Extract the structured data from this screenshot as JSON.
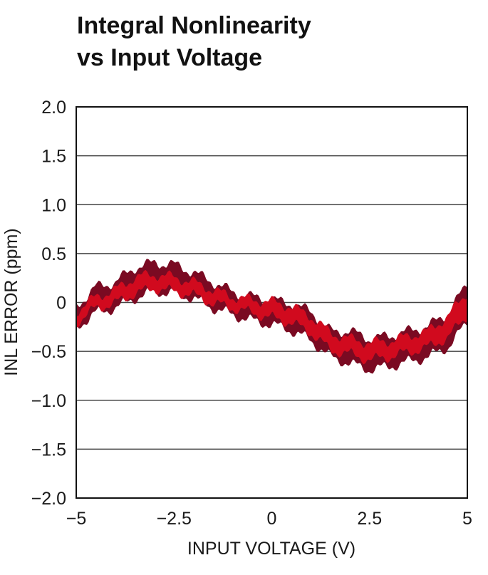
{
  "chart_data": {
    "type": "area",
    "title_lines": [
      "Integral Nonlinearity",
      "vs Input Voltage"
    ],
    "xlabel": "INPUT VOLTAGE (V)",
    "ylabel": "INL ERROR (ppm)",
    "xlim": [
      -5,
      5
    ],
    "ylim": [
      -2.0,
      2.0
    ],
    "x_ticks": [
      -5,
      -2.5,
      0,
      2.5,
      5
    ],
    "x_tick_labels": [
      "−5",
      "−2.5",
      "0",
      "2.5",
      "5"
    ],
    "y_ticks": [
      2.0,
      1.5,
      1.0,
      0.5,
      0,
      -0.5,
      -1.0,
      -1.5,
      -2.0
    ],
    "y_tick_labels": [
      "2.0",
      "1.5",
      "1.0",
      "0.5",
      "0",
      "−0.5",
      "−1.0",
      "−1.5",
      "−2.0"
    ],
    "grid": "horizontal",
    "series": [
      {
        "color": "#7a0a22",
        "x": [
          -5.0,
          -4.5,
          -4.0,
          -3.5,
          -3.0,
          -2.5,
          -2.0,
          -1.5,
          -1.0,
          -0.5,
          0.0,
          0.5,
          1.0,
          1.5,
          2.0,
          2.5,
          3.0,
          3.5,
          4.0,
          4.5,
          5.0
        ],
        "upper": [
          -0.05,
          0.15,
          0.2,
          0.35,
          0.4,
          0.38,
          0.3,
          0.2,
          0.1,
          0.05,
          0.02,
          -0.02,
          -0.1,
          -0.3,
          -0.3,
          -0.38,
          -0.35,
          -0.3,
          -0.25,
          -0.12,
          0.18
        ],
        "lower": [
          -0.25,
          -0.1,
          -0.05,
          0.05,
          0.12,
          0.1,
          0.05,
          -0.05,
          -0.12,
          -0.18,
          -0.22,
          -0.28,
          -0.38,
          -0.55,
          -0.62,
          -0.68,
          -0.65,
          -0.6,
          -0.55,
          -0.45,
          -0.2
        ]
      },
      {
        "color": "#d10a1e",
        "x": [
          -5.0,
          -4.5,
          -4.0,
          -3.5,
          -3.0,
          -2.5,
          -2.0,
          -1.5,
          -1.0,
          -0.5,
          0.0,
          0.5,
          1.0,
          1.5,
          2.0,
          2.5,
          3.0,
          3.5,
          4.0,
          4.5,
          5.0
        ],
        "upper": [
          -0.1,
          0.05,
          0.12,
          0.25,
          0.28,
          0.25,
          0.2,
          0.12,
          0.05,
          0.02,
          0.0,
          -0.05,
          -0.15,
          -0.32,
          -0.38,
          -0.42,
          -0.4,
          -0.35,
          -0.3,
          -0.15,
          0.1
        ],
        "lower": [
          -0.2,
          -0.05,
          0.0,
          0.1,
          0.15,
          0.12,
          0.08,
          0.0,
          -0.05,
          -0.1,
          -0.15,
          -0.2,
          -0.3,
          -0.48,
          -0.52,
          -0.58,
          -0.55,
          -0.5,
          -0.45,
          -0.35,
          -0.12
        ]
      }
    ]
  },
  "colors": {
    "background": "#ffffff",
    "frame": "#111111",
    "gridline": "#444444",
    "text": "#111111"
  }
}
